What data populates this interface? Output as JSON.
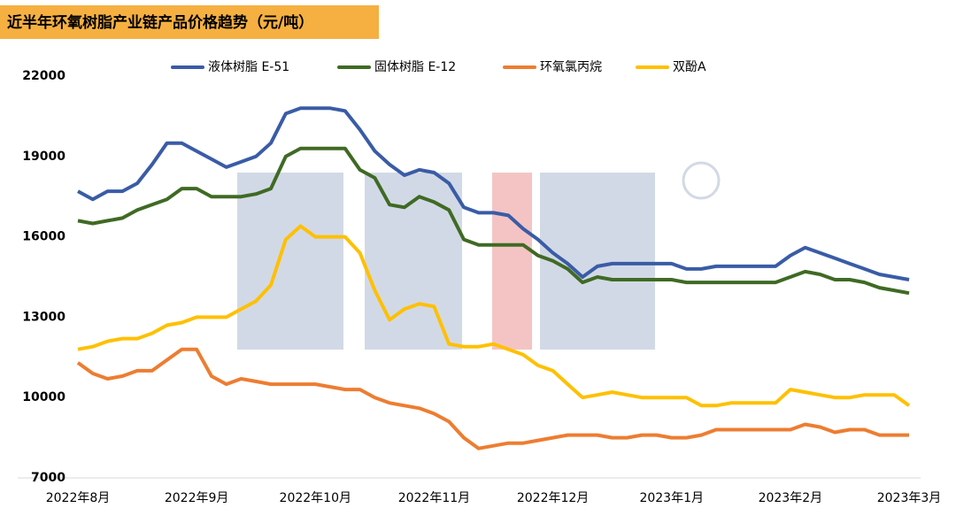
{
  "chart_data": {
    "type": "line",
    "title": "近半年环氧树脂产业链产品价格趋势（元/吨）",
    "categories": [
      "2022年8月",
      null,
      null,
      null,
      null,
      null,
      null,
      null,
      "2022年9月",
      null,
      null,
      null,
      null,
      null,
      null,
      null,
      "2022年10月",
      null,
      null,
      null,
      null,
      null,
      null,
      null,
      "2022年11月",
      null,
      null,
      null,
      null,
      null,
      null,
      null,
      "2022年12月",
      null,
      null,
      null,
      null,
      null,
      null,
      null,
      "2023年1月",
      null,
      null,
      null,
      null,
      null,
      null,
      null,
      "2023年2月",
      null,
      null,
      null,
      null,
      null,
      null,
      null,
      "2023年3月"
    ],
    "series": [
      {
        "name": "液体树脂 E-51",
        "color": "#3a5ca6",
        "values": [
          17700,
          17400,
          17700,
          17700,
          18000,
          18700,
          19500,
          19500,
          19200,
          18900,
          18600,
          18800,
          19000,
          19500,
          20600,
          20800,
          20800,
          20800,
          20700,
          20000,
          19200,
          18700,
          18300,
          18500,
          18400,
          18000,
          17100,
          16900,
          16900,
          16800,
          16300,
          15900,
          15400,
          15000,
          14500,
          14900,
          15000,
          15000,
          15000,
          15000,
          15000,
          14800,
          14800,
          14900,
          14900,
          14900,
          14900,
          14900,
          15300,
          15600,
          15400,
          15200,
          15000,
          14800,
          14600,
          14500,
          14400
        ]
      },
      {
        "name": "固体树脂 E-12",
        "color": "#3f6a24",
        "values": [
          16600,
          16500,
          16600,
          16700,
          17000,
          17200,
          17400,
          17800,
          17800,
          17500,
          17500,
          17500,
          17600,
          17800,
          19000,
          19300,
          19300,
          19300,
          19300,
          18500,
          18200,
          17200,
          17100,
          17500,
          17300,
          17000,
          15900,
          15700,
          15700,
          15700,
          15700,
          15300,
          15100,
          14800,
          14300,
          14500,
          14400,
          14400,
          14400,
          14400,
          14400,
          14300,
          14300,
          14300,
          14300,
          14300,
          14300,
          14300,
          14500,
          14700,
          14600,
          14400,
          14400,
          14300,
          14100,
          14000,
          13900
        ]
      },
      {
        "name": "环氧氯丙烷",
        "color": "#ed7d31",
        "values": [
          11300,
          10900,
          10700,
          10800,
          11000,
          11000,
          11400,
          11800,
          11800,
          10800,
          10500,
          10700,
          10600,
          10500,
          10500,
          10500,
          10500,
          10400,
          10300,
          10300,
          10000,
          9800,
          9700,
          9600,
          9400,
          9100,
          8500,
          8100,
          8200,
          8300,
          8300,
          8400,
          8500,
          8600,
          8600,
          8600,
          8500,
          8500,
          8600,
          8600,
          8500,
          8500,
          8600,
          8800,
          8800,
          8800,
          8800,
          8800,
          8800,
          9000,
          8900,
          8700,
          8800,
          8800,
          8600,
          8600,
          8600
        ]
      },
      {
        "name": "双酚A",
        "color": "#ffc000",
        "values": [
          11800,
          11900,
          12100,
          12200,
          12200,
          12400,
          12700,
          12800,
          13000,
          13000,
          13000,
          13300,
          13600,
          14200,
          15900,
          16400,
          16000,
          16000,
          16000,
          15400,
          14000,
          12900,
          13300,
          13500,
          13400,
          12000,
          11900,
          11900,
          12000,
          11800,
          11600,
          11200,
          11000,
          10500,
          10000,
          10100,
          10200,
          10100,
          10000,
          10000,
          10000,
          10000,
          9700,
          9700,
          9800,
          9800,
          9800,
          9800,
          10300,
          10200,
          10100,
          10000,
          10000,
          10100,
          10100,
          10100,
          9700
        ]
      }
    ],
    "ylim": [
      7000,
      22000
    ],
    "yticks": [
      7000,
      10000,
      13000,
      16000,
      19000,
      22000
    ],
    "grid": false
  }
}
